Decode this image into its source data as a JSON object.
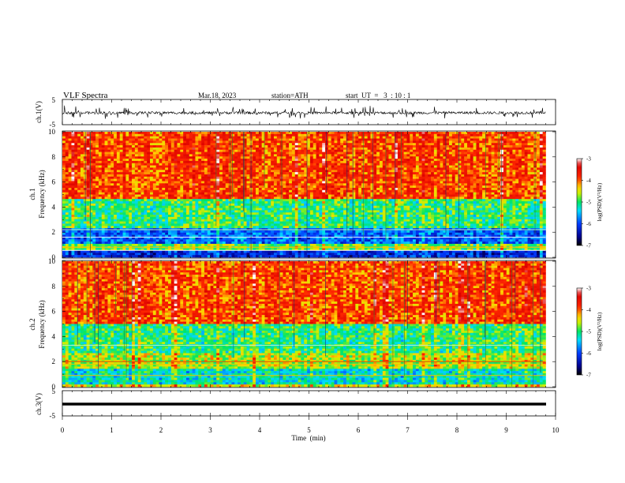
{
  "header": {
    "title": "VLF  Spectra",
    "date": "Mar.18, 2023",
    "station": "station=ATH",
    "start": "start  UT  =   3  : 10 : 1"
  },
  "chart_data": [
    {
      "type": "line",
      "panel": "ch1-waveform",
      "ylabel": "ch.1(V)",
      "ylim": [
        -5,
        5
      ],
      "yticks": [
        "5",
        "-5"
      ],
      "xlim": [
        0,
        10
      ],
      "series": [
        {
          "trace": "noisy waveform centred near -0.3 V with frequent spikes up to about +/-2.5 V, extending to t = 9.8 min",
          "color": "#000000"
        }
      ]
    },
    {
      "type": "heatmap",
      "panel": "ch1-spectrogram",
      "ylabel_line1": "ch.1",
      "ylabel_line2": "Frequency  (kHz)",
      "ylim": [
        0,
        10
      ],
      "yticks": [
        "10",
        "8",
        "6",
        "4",
        "2",
        "0"
      ],
      "xlim": [
        0,
        9.8
      ],
      "colorscale_label": "log(PSD)(V²/Hz)",
      "colorscale_ticks": [
        "-3",
        "-4",
        "-5",
        "-6",
        "-7"
      ],
      "bands": [
        {
          "from_khz": 4.6,
          "to_khz": 10,
          "value": -3.9,
          "color": "red/orange"
        },
        {
          "from_khz": 2.4,
          "to_khz": 4.6,
          "value": -5.0,
          "color": "green/cyan"
        },
        {
          "from_khz": 1.0,
          "to_khz": 2.4,
          "value": -5.9,
          "color": "blue"
        },
        {
          "from_khz": 0.5,
          "to_khz": 1.0,
          "value": -4.8,
          "color": "yellow"
        },
        {
          "from_khz": 0.0,
          "to_khz": 0.5,
          "value": -6.2,
          "color": "blue"
        }
      ]
    },
    {
      "type": "heatmap",
      "panel": "ch2-spectrogram",
      "ylabel_line1": "ch.2",
      "ylabel_line2": "Frequency  (kHz)",
      "ylim": [
        0,
        10
      ],
      "yticks": [
        "10",
        "8",
        "6",
        "4",
        "2",
        "0"
      ],
      "xlim": [
        0,
        9.8
      ],
      "colorscale_label": "log(PSD)(V²/Hz)",
      "colorscale_ticks": [
        "-3",
        "-4",
        "-5",
        "-6",
        "-7"
      ],
      "bands": [
        {
          "from_khz": 5.0,
          "to_khz": 10,
          "value": -3.9,
          "color": "red/orange"
        },
        {
          "from_khz": 2.6,
          "to_khz": 5.0,
          "value": -5.0,
          "color": "green/cyan"
        },
        {
          "from_khz": 1.5,
          "to_khz": 2.6,
          "value": -4.6,
          "color": "yellow/orange"
        },
        {
          "from_khz": 0.2,
          "to_khz": 1.5,
          "value": -5.3,
          "color": "cyan/blue"
        }
      ]
    },
    {
      "type": "line",
      "panel": "ch3-waveform",
      "ylabel": "ch.3(V)",
      "ylim": [
        -5,
        5
      ],
      "yticks": [
        "5",
        "-5"
      ],
      "xlim": [
        0,
        10
      ],
      "xlabel": "Time  (min)",
      "xticks": [
        "0",
        "1",
        "2",
        "3",
        "4",
        "5",
        "6",
        "7",
        "8",
        "9",
        "10"
      ],
      "series": [
        {
          "trace": "flat thick line at about 0 V extending to t = 9.8 min",
          "color": "#000000"
        }
      ]
    }
  ]
}
